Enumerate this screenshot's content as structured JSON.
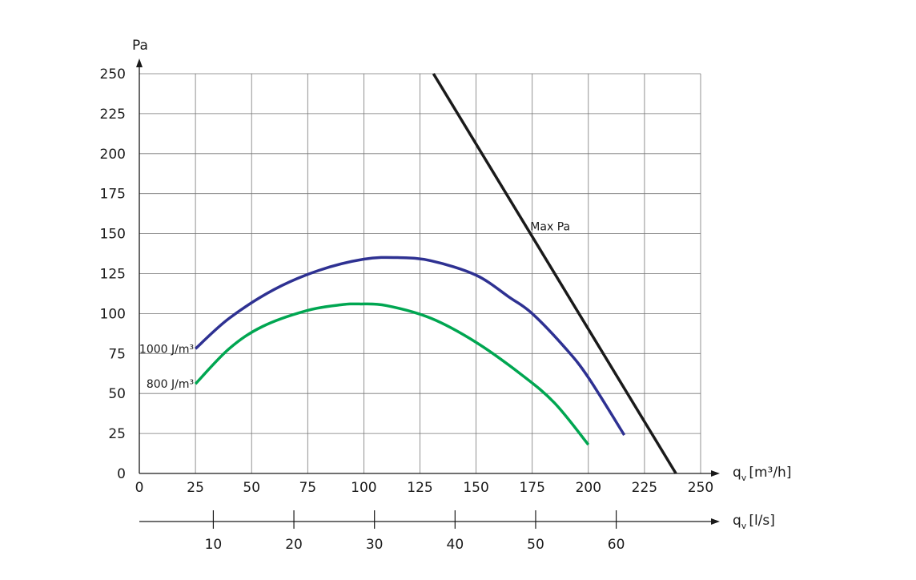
{
  "chart_data": {
    "type": "line",
    "ylabel": "Pa",
    "xlabel": "q",
    "xlabel_sub": "v",
    "xlabel_unit": "[m³/h]",
    "x2label": "q",
    "x2label_sub": "v",
    "x2label_unit": "[l/s]",
    "xlim": [
      0,
      250
    ],
    "ylim": [
      0,
      250
    ],
    "x_ticks": [
      0,
      25,
      50,
      75,
      100,
      125,
      150,
      175,
      200,
      225,
      250
    ],
    "y_ticks": [
      0,
      25,
      50,
      75,
      100,
      125,
      150,
      175,
      200,
      225,
      250
    ],
    "x2_ticks": [
      10,
      20,
      30,
      40,
      50,
      60
    ],
    "grid": true,
    "series": [
      {
        "name": "1000 J/m³",
        "color": "#2e3192",
        "points": [
          [
            25,
            78
          ],
          [
            40,
            97
          ],
          [
            60,
            115
          ],
          [
            80,
            127
          ],
          [
            100,
            134
          ],
          [
            115,
            135
          ],
          [
            130,
            133
          ],
          [
            150,
            124
          ],
          [
            165,
            110
          ],
          [
            175,
            100
          ],
          [
            190,
            78
          ],
          [
            200,
            60
          ],
          [
            216,
            24
          ]
        ]
      },
      {
        "name": "800 J/m³",
        "color": "#00a651",
        "points": [
          [
            25,
            56
          ],
          [
            40,
            78
          ],
          [
            55,
            92
          ],
          [
            75,
            102
          ],
          [
            90,
            105.5
          ],
          [
            98,
            106
          ],
          [
            110,
            105
          ],
          [
            130,
            97
          ],
          [
            150,
            82
          ],
          [
            170,
            62
          ],
          [
            185,
            44
          ],
          [
            200,
            18
          ]
        ]
      },
      {
        "name": "Max Pa",
        "color": "#1a1a1a",
        "points": [
          [
            131,
            250
          ],
          [
            239,
            0
          ]
        ]
      }
    ]
  }
}
